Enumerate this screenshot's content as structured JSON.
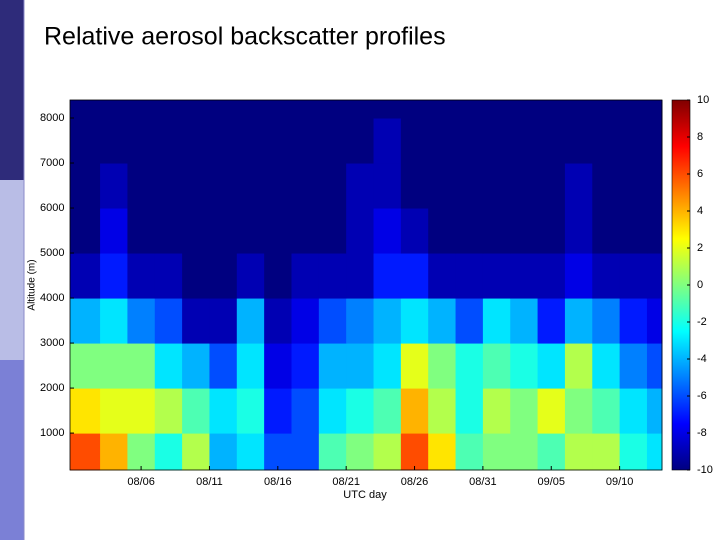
{
  "chart_data": {
    "type": "heatmap",
    "title": "Relative aerosol backscatter profiles",
    "xlabel": "UTC day",
    "ylabel": "Altitude (m)",
    "xlim": [
      0.8,
      44.1
    ],
    "xticks": [
      {
        "value": 6,
        "label": "08/06"
      },
      {
        "value": 11,
        "label": "08/11"
      },
      {
        "value": 16,
        "label": "08/16"
      },
      {
        "value": 21,
        "label": "08/21"
      },
      {
        "value": 26,
        "label": "08/26"
      },
      {
        "value": 31,
        "label": "08/31"
      },
      {
        "value": 36,
        "label": "09/05"
      },
      {
        "value": 41,
        "label": "09/10"
      }
    ],
    "ylim": [
      180,
      8400
    ],
    "yticks": [
      1000,
      2000,
      3000,
      4000,
      5000,
      6000,
      7000,
      8000
    ],
    "x_edges": [
      0.8,
      3,
      5,
      7,
      9,
      11,
      13,
      15,
      17,
      19,
      21,
      23,
      25,
      27,
      29,
      31,
      33,
      35,
      37,
      39,
      41,
      43,
      44.1
    ],
    "y_edges": [
      180,
      1000,
      2000,
      3000,
      4000,
      5000,
      6000,
      7000,
      8000,
      8400
    ],
    "z": [
      [
        6,
        4,
        0,
        -2,
        1,
        -4,
        -3,
        -6,
        -6,
        -1,
        0,
        1,
        6,
        3,
        -1,
        0,
        0,
        -1,
        1,
        1,
        -2,
        -3
      ],
      [
        3,
        2,
        2,
        1,
        -1,
        -3,
        -2,
        -7,
        -6,
        -3,
        -2,
        -1,
        4,
        1,
        -2,
        1,
        0,
        2,
        0,
        -1,
        -3,
        -4
      ],
      [
        0,
        0,
        0,
        -3,
        -4,
        -6,
        -3,
        -8,
        -7,
        -4,
        -4,
        -3,
        2,
        0,
        -2,
        -1,
        -2,
        -3,
        1,
        -3,
        -5,
        -6
      ],
      [
        -4,
        -3,
        -5,
        -6,
        -9,
        -9,
        -4,
        -9,
        -8,
        -6,
        -5,
        -4,
        -3,
        -4,
        -6,
        -3,
        -4,
        -7,
        -4,
        -5,
        -7,
        -8
      ],
      [
        -9,
        -7,
        -9,
        -9,
        -10,
        -10,
        -9,
        -10,
        -9,
        -9,
        -9,
        -7,
        -7,
        -9,
        -9,
        -9,
        -9,
        -9,
        -8,
        -9,
        -9,
        -9
      ],
      [
        -10,
        -8,
        -10,
        -10,
        -10,
        -10,
        -10,
        -10,
        -10,
        -10,
        -9,
        -8,
        -9,
        -10,
        -10,
        -10,
        -10,
        -10,
        -9,
        -10,
        -10,
        -10
      ],
      [
        -10,
        -9,
        -10,
        -10,
        -10,
        -10,
        -10,
        -10,
        -10,
        -10,
        -9,
        -9,
        -10,
        -10,
        -10,
        -10,
        -10,
        -10,
        -9,
        -10,
        -10,
        -10
      ],
      [
        -10,
        -10,
        -10,
        -10,
        -10,
        -10,
        -10,
        -10,
        -10,
        -10,
        -10,
        -9,
        -10,
        -10,
        -10,
        -10,
        -10,
        -10,
        -10,
        -10,
        -10,
        -10
      ],
      [
        -10,
        -10,
        -10,
        -10,
        -10,
        -10,
        -10,
        -10,
        -10,
        -10,
        -10,
        -10,
        -10,
        -10,
        -10,
        -10,
        -10,
        -10,
        -10,
        -10,
        -10,
        -10
      ]
    ],
    "clim": [
      -10,
      10
    ],
    "cticks": [
      -10,
      -8,
      -6,
      -4,
      -2,
      0,
      2,
      4,
      6,
      8,
      10
    ],
    "colormap": "jet"
  }
}
